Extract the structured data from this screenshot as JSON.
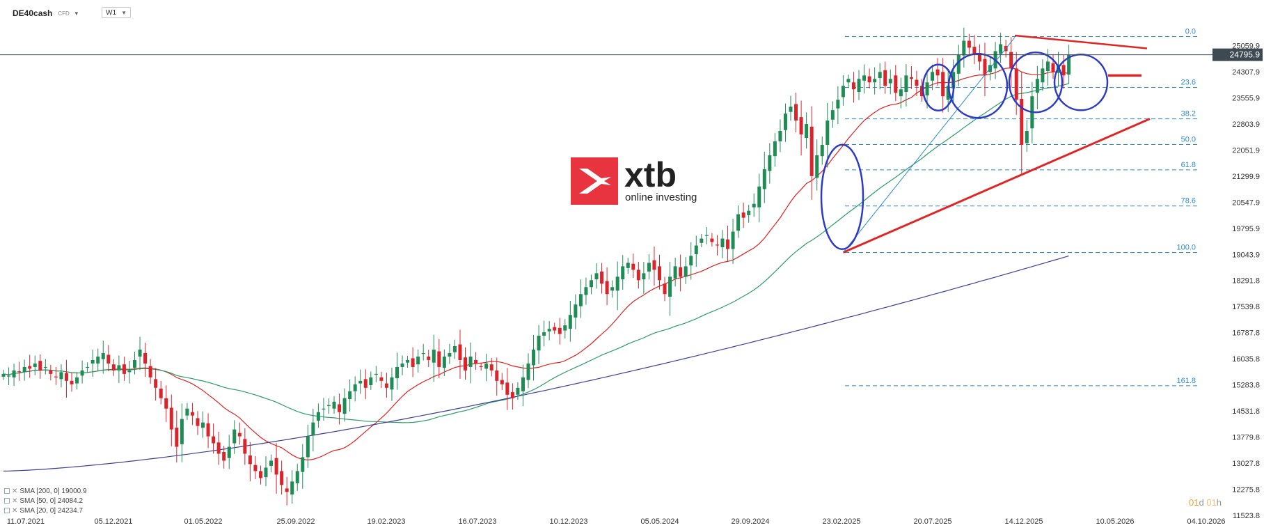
{
  "toolbar": {
    "symbol": "DE40cash",
    "asset_type": "CFD",
    "timeframe": "W1"
  },
  "logo": {
    "brand": "xtb",
    "tagline": "online investing"
  },
  "price_axis": {
    "labels": [
      "25059.9",
      "24307.9",
      "23555.9",
      "22803.9",
      "22051.9",
      "21299.9",
      "20547.9",
      "19795.9",
      "19043.9",
      "18291.8",
      "17539.8",
      "16787.8",
      "16035.8",
      "15283.8",
      "14531.8",
      "13779.8",
      "13027.8",
      "12275.8",
      "11523.8"
    ],
    "current_price": "24795.9"
  },
  "time_axis": {
    "labels": [
      "11.07.2021",
      "05.12.2021",
      "01.05.2022",
      "25.09.2022",
      "19.02.2023",
      "16.07.2023",
      "10.12.2023",
      "05.05.2024",
      "29.09.2024",
      "23.02.2025",
      "20.07.2025",
      "14.12.2025",
      "10.05.2026",
      "04.10.2026"
    ]
  },
  "fibonacci": {
    "levels": [
      {
        "label": "0.0",
        "price": 25320
      },
      {
        "label": "23.6",
        "price": 23855
      },
      {
        "label": "38.2",
        "price": 22950
      },
      {
        "label": "50.0",
        "price": 22210
      },
      {
        "label": "61.8",
        "price": 21480
      },
      {
        "label": "78.6",
        "price": 20440
      },
      {
        "label": "100.0",
        "price": 19100
      },
      {
        "label": "161.8",
        "price": 15260
      }
    ]
  },
  "legend": {
    "sma200": "SMA [200, 0] 19000.9",
    "sma50": "SMA [50, 0] 24084.2",
    "sma20": "SMA [20, 0] 24234.7"
  },
  "countdown": {
    "days": "01",
    "day_unit": "d",
    "hours": "01",
    "hour_unit": "h"
  },
  "colors": {
    "bull": "#1f8c55",
    "bear": "#d9242b",
    "sma20": "#e02020",
    "sma50": "#2a9d6a",
    "sma200": "#3b3f9a",
    "fib": "#2a8ad6",
    "trend": "#e02525",
    "ellipse": "#2d3bc4",
    "price_tag": "#3e4a52",
    "logo_red": "#e8343f"
  },
  "chart_data": {
    "type": "candlestick",
    "symbol": "DE40cash",
    "timeframe": "W1",
    "ylim": [
      11523.8,
      25811.9
    ],
    "x_ticks": [
      "11.07.2021",
      "05.12.2021",
      "01.05.2022",
      "25.09.2022",
      "19.02.2023",
      "16.07.2023",
      "10.12.2023",
      "05.05.2024",
      "29.09.2024",
      "23.02.2025",
      "20.07.2025",
      "14.12.2025",
      "10.05.2026",
      "04.10.2026"
    ],
    "current_price": 24795.9,
    "closes": [
      15600,
      15550,
      15700,
      15650,
      15800,
      15750,
      15900,
      15700,
      15800,
      15600,
      15500,
      15650,
      15400,
      15300,
      15500,
      15700,
      15800,
      16000,
      16100,
      16200,
      15900,
      15700,
      15850,
      15600,
      15700,
      16000,
      16300,
      15900,
      15500,
      15200,
      14900,
      14600,
      14000,
      13500,
      14300,
      14600,
      14400,
      14100,
      14200,
      13800,
      13600,
      13300,
      13100,
      13500,
      14000,
      13800,
      13300,
      13000,
      12800,
      12600,
      12900,
      13100,
      12700,
      12400,
      12200,
      12500,
      12800,
      13200,
      13800,
      14200,
      14500,
      14600,
      14700,
      14800,
      14500,
      14900,
      15100,
      15300,
      15400,
      15200,
      15500,
      15600,
      15400,
      15200,
      15500,
      15800,
      15900,
      16000,
      15800,
      16100,
      16200,
      16000,
      16300,
      15800,
      16100,
      16200,
      16400,
      16000,
      15700,
      16100,
      15900,
      15800,
      15900,
      15700,
      15400,
      15300,
      15000,
      14900,
      15200,
      15500,
      15900,
      16300,
      16700,
      16800,
      16900,
      16850,
      16750,
      17000,
      17300,
      17600,
      17900,
      18100,
      18300,
      18500,
      18200,
      17900,
      18100,
      18400,
      18700,
      18800,
      18600,
      18300,
      18500,
      18800,
      18600,
      18300,
      17900,
      18400,
      18700,
      18400,
      18700,
      19000,
      19300,
      19500,
      19600,
      19400,
      19300,
      19500,
      19200,
      19700,
      20200,
      20100,
      20300,
      20500,
      21000,
      21500,
      21900,
      22300,
      22600,
      23100,
      23300,
      22900,
      22500,
      22800,
      21300,
      21900,
      22200,
      22900,
      23200,
      23500,
      23900,
      24100,
      23800,
      24100,
      24200,
      24000,
      24100,
      24300,
      23900,
      24100,
      23700,
      23800,
      24200,
      24100,
      23900,
      23600,
      24000,
      24300,
      24200,
      23600,
      23900,
      24300,
      24800,
      25200,
      25000,
      24800,
      24600,
      24200,
      24500,
      24900,
      25100,
      24900,
      24400,
      23500,
      22200,
      22600,
      23600,
      24100,
      24400,
      24600,
      24300,
      24500,
      24200,
      24795.9
    ],
    "series": [
      {
        "name": "SMA [200, 0]",
        "last": 19000.9
      },
      {
        "name": "SMA [50, 0]",
        "last": 24084.2
      },
      {
        "name": "SMA [20, 0]",
        "last": 24234.7
      }
    ]
  }
}
